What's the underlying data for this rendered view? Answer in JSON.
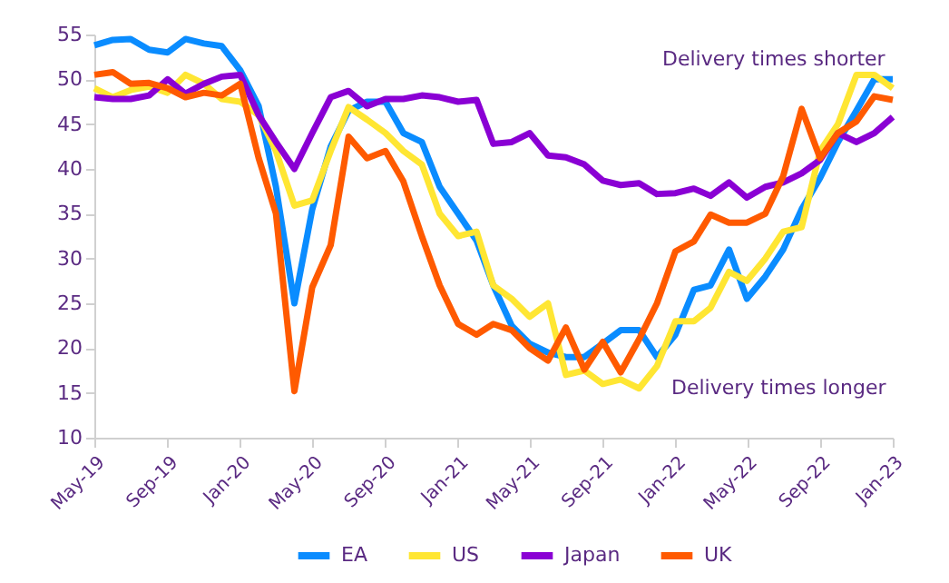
{
  "chart_data": {
    "type": "line",
    "x": [
      "2019-05",
      "2019-06",
      "2019-07",
      "2019-08",
      "2019-09",
      "2019-10",
      "2019-11",
      "2019-12",
      "2020-01",
      "2020-02",
      "2020-03",
      "2020-04",
      "2020-05",
      "2020-06",
      "2020-07",
      "2020-08",
      "2020-09",
      "2020-10",
      "2020-11",
      "2020-12",
      "2021-01",
      "2021-02",
      "2021-03",
      "2021-04",
      "2021-05",
      "2021-06",
      "2021-07",
      "2021-08",
      "2021-09",
      "2021-10",
      "2021-11",
      "2021-12",
      "2022-01",
      "2022-02",
      "2022-03",
      "2022-04",
      "2022-05",
      "2022-06",
      "2022-07",
      "2022-08",
      "2022-09",
      "2022-10",
      "2022-11",
      "2022-12",
      "2023-01"
    ],
    "series": [
      {
        "name": "EA",
        "color": "#0a8cff",
        "values": [
          53.8,
          54.4,
          54.5,
          53.3,
          53.0,
          54.5,
          54.0,
          53.7,
          51.0,
          47.0,
          38.0,
          25.0,
          35.5,
          42.5,
          46.5,
          47.5,
          47.5,
          44.0,
          43.0,
          38.0,
          35.0,
          32.0,
          27.0,
          22.5,
          20.5,
          19.5,
          19.0,
          19.0,
          20.5,
          22.0,
          22.0,
          19.0,
          21.5,
          26.5,
          27.0,
          31.0,
          25.5,
          28.0,
          31.0,
          35.5,
          39.0,
          43.0,
          46.5,
          50.0,
          50.0
        ]
      },
      {
        "name": "US",
        "color": "#ffe633",
        "values": [
          49.0,
          48.0,
          48.8,
          49.2,
          48.5,
          50.5,
          49.5,
          47.8,
          47.5,
          46.0,
          42.0,
          35.9,
          36.5,
          42.0,
          46.9,
          45.5,
          44.0,
          42.0,
          40.5,
          35.0,
          32.5,
          33.0,
          27.0,
          25.5,
          23.5,
          25.0,
          17.0,
          17.5,
          16.0,
          16.5,
          15.5,
          18.0,
          23.0,
          23.0,
          24.5,
          28.5,
          27.5,
          30.0,
          33.0,
          33.5,
          42.0,
          45.0,
          50.5,
          50.5,
          49.0
        ]
      },
      {
        "name": "Japan",
        "color": "#8a00d4",
        "values": [
          48.0,
          47.8,
          47.8,
          48.2,
          50.0,
          48.4,
          49.5,
          50.3,
          50.5,
          46.0,
          43.0,
          40.0,
          44.0,
          48.0,
          48.7,
          47.0,
          47.8,
          47.8,
          48.2,
          48.0,
          47.5,
          47.7,
          42.8,
          43.0,
          44.0,
          41.5,
          41.3,
          40.5,
          38.7,
          38.2,
          38.4,
          37.2,
          37.3,
          37.8,
          37.0,
          38.5,
          36.8,
          38.0,
          38.5,
          39.5,
          41.0,
          44.0,
          43.0,
          44.0,
          45.8
        ]
      },
      {
        "name": "UK",
        "color": "#ff5a00",
        "values": [
          50.5,
          50.8,
          49.5,
          49.6,
          49.0,
          48.0,
          48.5,
          48.2,
          49.5,
          41.2,
          35.0,
          15.2,
          26.8,
          31.5,
          43.6,
          41.2,
          42.0,
          38.6,
          32.5,
          27.0,
          22.7,
          21.5,
          22.7,
          22.0,
          20.0,
          18.6,
          22.3,
          17.6,
          20.7,
          17.3,
          21.0,
          25.0,
          30.8,
          31.9,
          34.9,
          34.0,
          34.0,
          35.0,
          39.2,
          46.7,
          41.2,
          44.0,
          45.3,
          48.1,
          47.7
        ]
      }
    ],
    "ylim": [
      10,
      55
    ],
    "yticks": [
      10,
      15,
      20,
      25,
      30,
      35,
      40,
      45,
      50,
      55
    ],
    "xlim": [
      "2019-05",
      "2023-01"
    ],
    "xticks": [
      {
        "value": "2019-05",
        "label": "May-19"
      },
      {
        "value": "2019-09",
        "label": "Sep-19"
      },
      {
        "value": "2020-01",
        "label": "Jan-20"
      },
      {
        "value": "2020-05",
        "label": "May-20"
      },
      {
        "value": "2020-09",
        "label": "Sep-20"
      },
      {
        "value": "2021-01",
        "label": "Jan-21"
      },
      {
        "value": "2021-05",
        "label": "May-21"
      },
      {
        "value": "2021-09",
        "label": "Sep-21"
      },
      {
        "value": "2022-01",
        "label": "Jan-22"
      },
      {
        "value": "2022-05",
        "label": "May-22"
      },
      {
        "value": "2022-09",
        "label": "Sep-22"
      },
      {
        "value": "2023-01",
        "label": "Jan-23"
      }
    ],
    "annotations": [
      "Delivery times shorter",
      "Delivery times longer"
    ],
    "grid": false,
    "legend": "bottom",
    "line_style": "solid",
    "marker": "none"
  }
}
